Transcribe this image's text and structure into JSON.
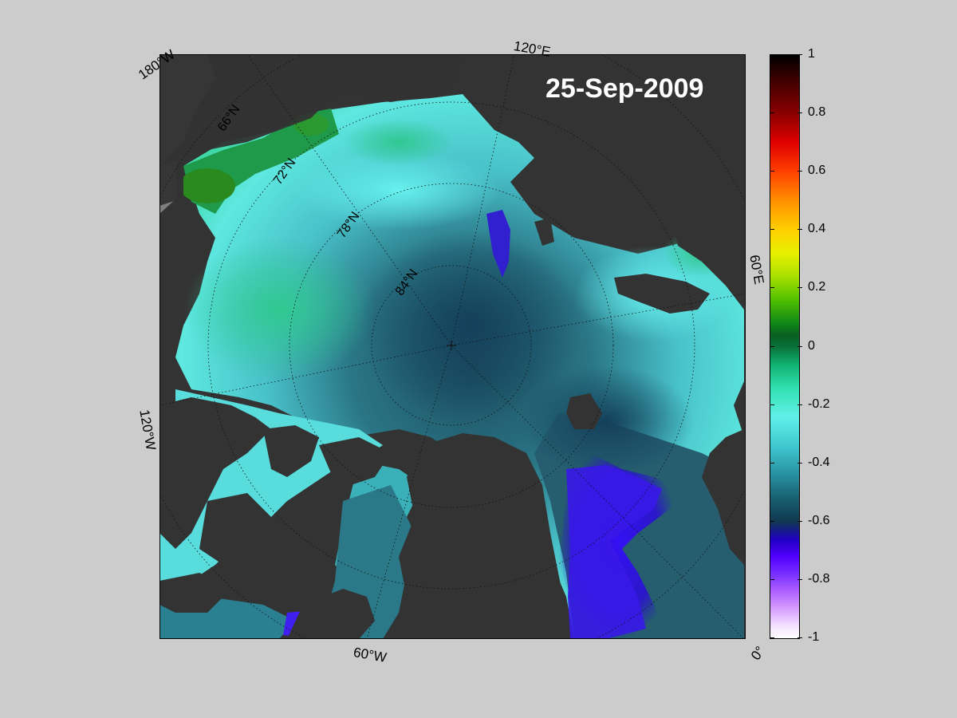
{
  "map": {
    "date": "25-Sep-2009",
    "longitude_labels": [
      "180°W",
      "120°E",
      "60°E",
      "0°",
      "60°W",
      "120°W"
    ],
    "latitude_labels": [
      "66°N",
      "72°N",
      "78°N",
      "84°N"
    ],
    "colors": {
      "land": "#333333",
      "background": "#cccccc",
      "no_data": "#7f7f7f",
      "sea_mid": "#2a7080",
      "sea_deep": "#1c4a5a",
      "sea_light": "#5ee8e4",
      "sea_green": "#3ad8a0",
      "low_anomaly": "#3010f0"
    }
  },
  "colorbar": {
    "min": -1,
    "max": 1,
    "ticks": [
      "1",
      "0.8",
      "0.6",
      "0.4",
      "0.2",
      "0",
      "-0.2",
      "-0.4",
      "-0.6",
      "-0.8",
      "-1"
    ]
  }
}
